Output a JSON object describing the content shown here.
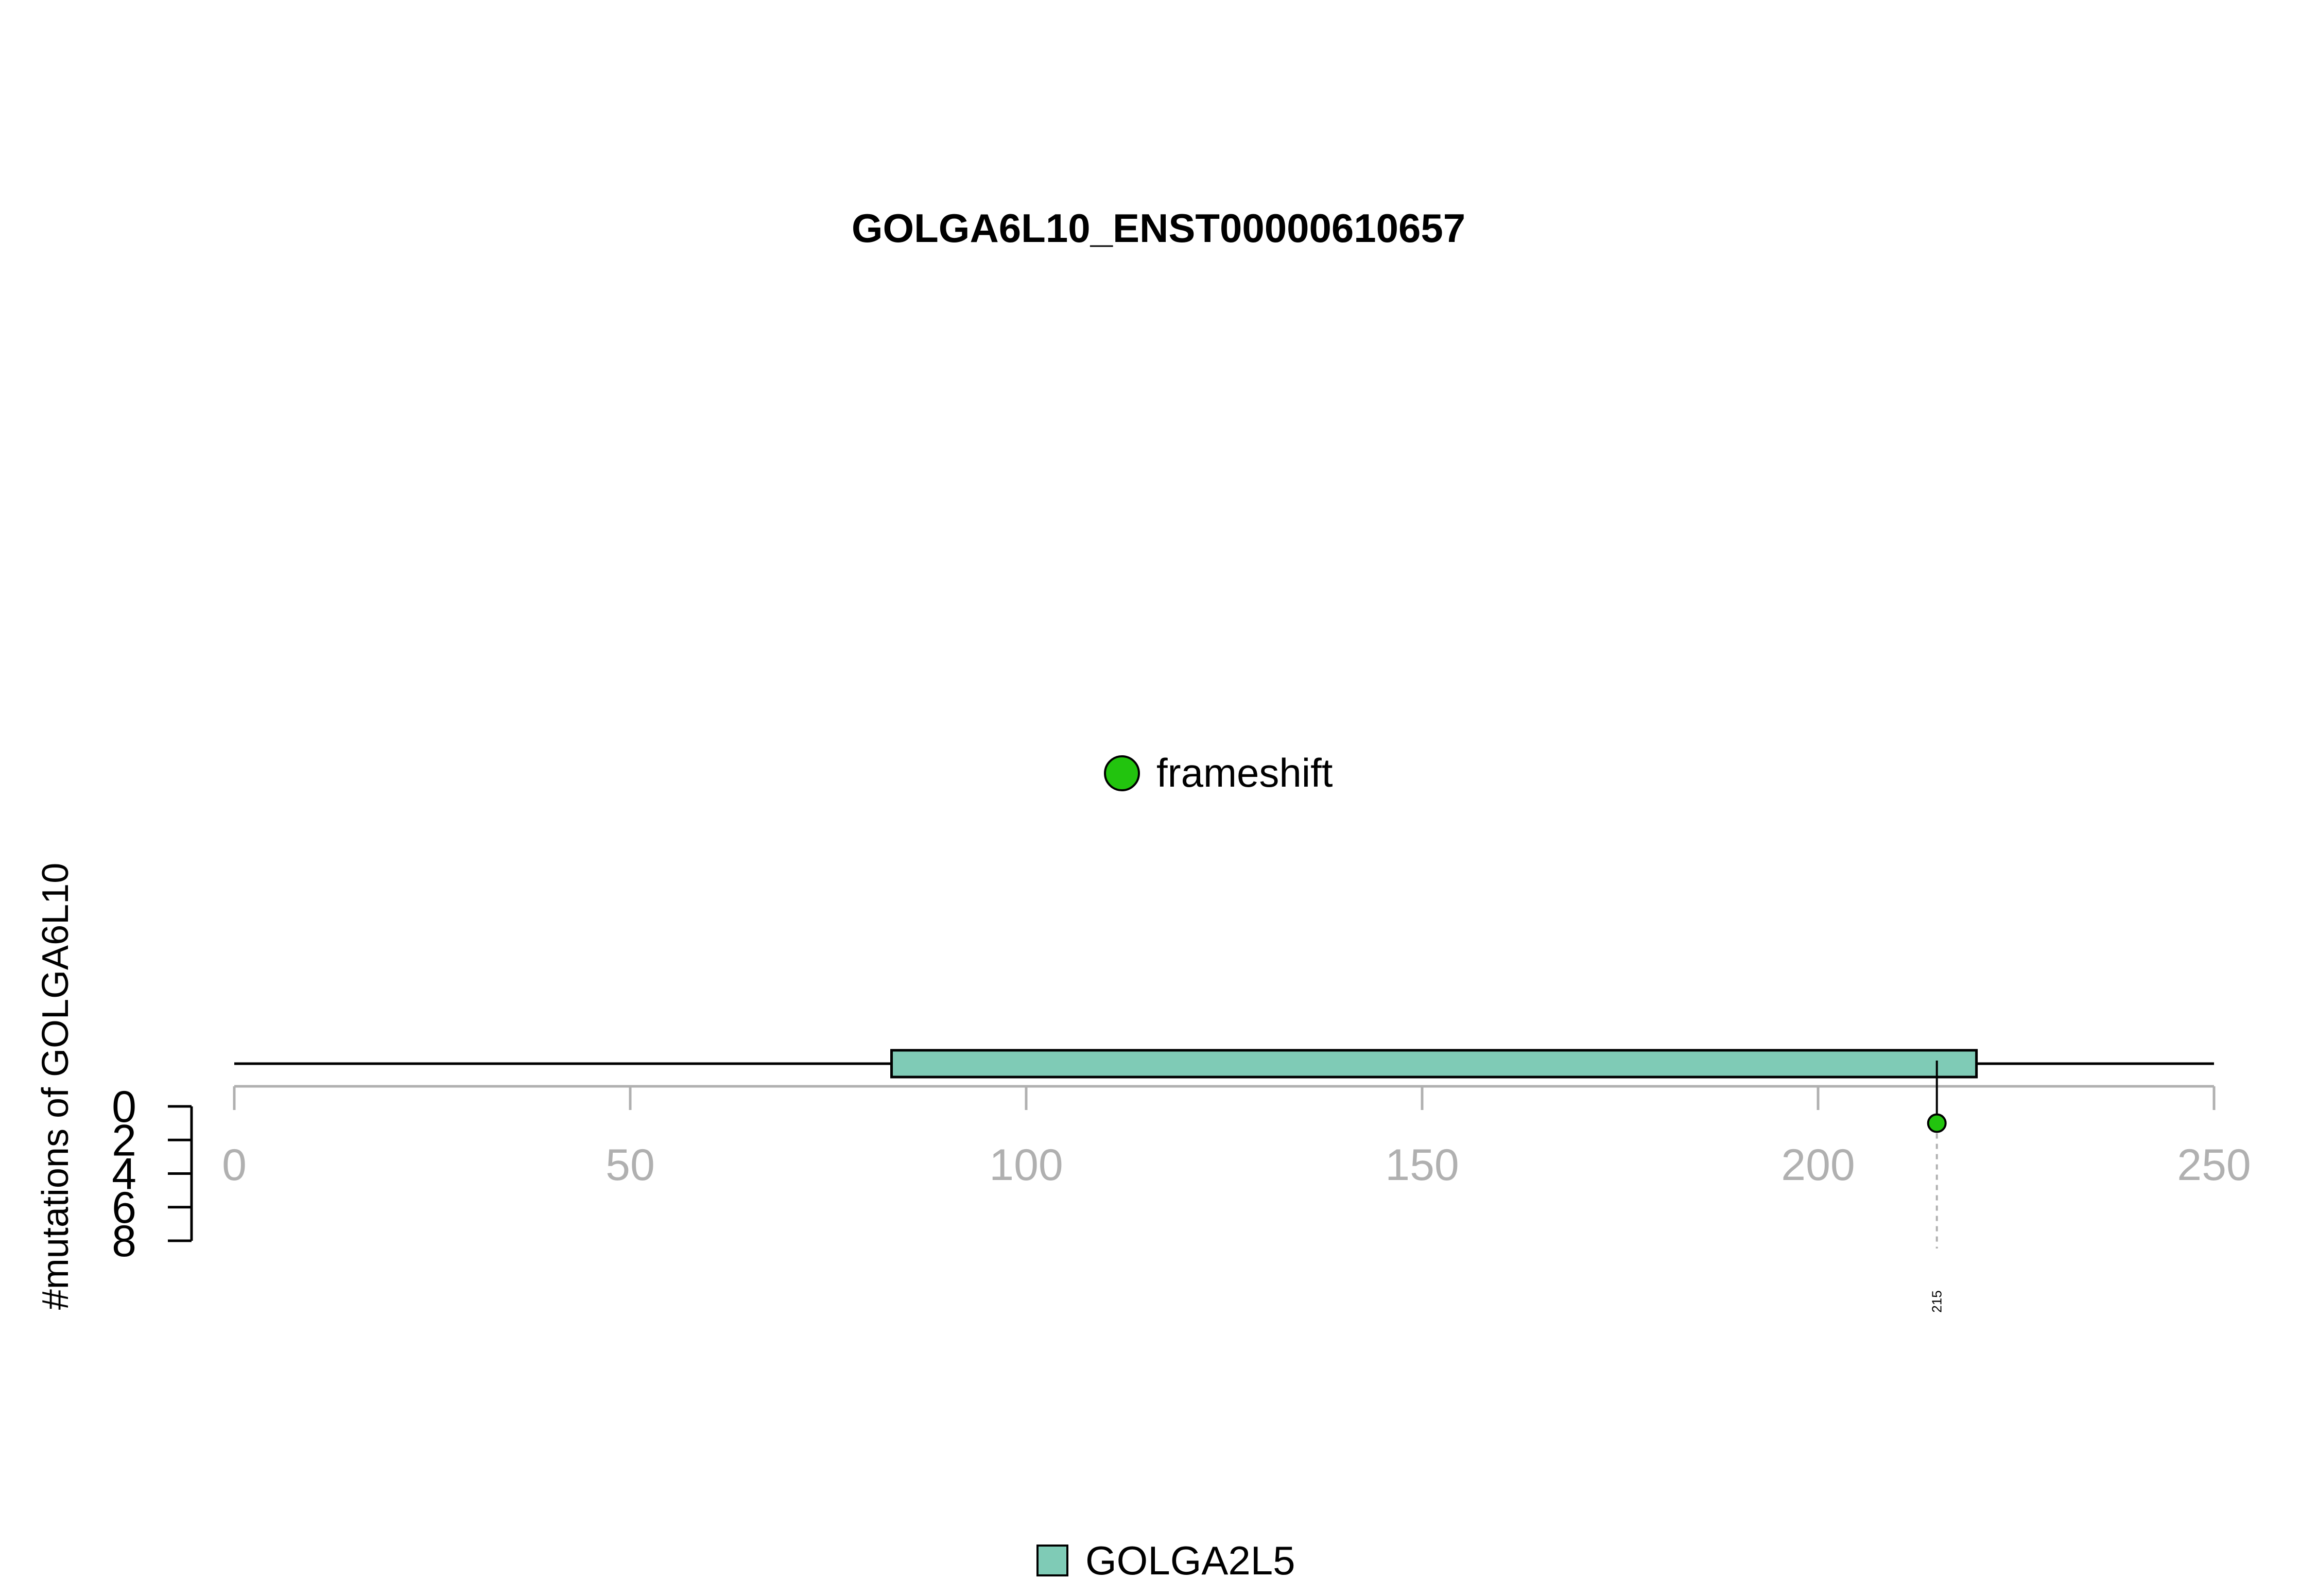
{
  "chart_data": {
    "type": "lollipop",
    "title": "GOLGA6L10_ENST00000610657",
    "ylabel": "#mutations of GOLGA6L10",
    "protein_length": 250,
    "xlim": [
      0,
      250
    ],
    "x_ticks": [
      0,
      50,
      100,
      150,
      200,
      250
    ],
    "ylim": [
      0,
      8
    ],
    "y_ticks": [
      0,
      2,
      4,
      6,
      8
    ],
    "domains": [
      {
        "name": "GOLGA2L5",
        "start": 83,
        "end": 220,
        "color": "#7fcbb6"
      }
    ],
    "mutation_legend": [
      {
        "name": "frameshift",
        "color": "#22c40e"
      }
    ],
    "mutations": [
      {
        "position": 215,
        "count": 1,
        "type": "frameshift",
        "label": "215",
        "color": "#22c40e"
      }
    ],
    "colors": {
      "axis": "#b0b0b0",
      "backbone": "#000000",
      "guide": "#b0b0b0"
    }
  }
}
